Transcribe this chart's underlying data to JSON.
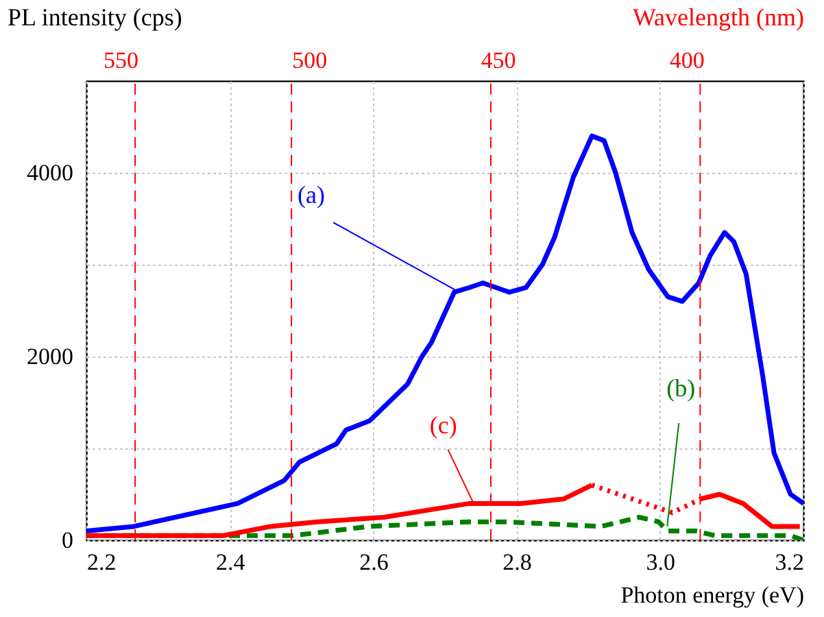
{
  "chart_data": {
    "type": "line",
    "ylabel": "PL intensity (cps)",
    "xlabel": "Photon energy (eV)",
    "x2label": "Wavelength (nm)",
    "xlim": [
      2.2,
      3.2
    ],
    "xticks": [
      {
        "value": 2.2,
        "label": "2.2"
      },
      {
        "value": 2.4,
        "label": "2.4"
      },
      {
        "value": 2.6,
        "label": "2.6"
      },
      {
        "value": 2.8,
        "label": "2.8"
      },
      {
        "value": 3.0,
        "label": "3.0"
      },
      {
        "value": 3.2,
        "label": "3.2"
      }
    ],
    "x2lim": [
      559,
      369
    ],
    "x2ticks": [
      550,
      500,
      450,
      400
    ],
    "ylim": [
      0,
      5000
    ],
    "yticks": [
      0,
      {
        "value": 1000,
        "label": null
      },
      2000,
      {
        "value": 3000,
        "label": null
      },
      4000
    ],
    "grid": true,
    "marker": "none",
    "series": [
      {
        "color": "#0000ff",
        "line_style": "solid",
        "x": [
          2.2,
          2.266,
          2.411,
          2.476,
          2.497,
          2.549,
          2.562,
          2.595,
          2.648,
          2.668,
          2.681,
          2.713,
          2.734,
          2.753,
          2.79,
          2.813,
          2.836,
          2.853,
          2.879,
          2.905,
          2.922,
          2.938,
          2.961,
          2.984,
          3.011,
          3.031,
          3.054,
          3.07,
          3.09,
          3.103,
          3.12,
          3.143,
          3.159,
          3.182,
          3.2
        ],
        "values": [
          100,
          150,
          400,
          650,
          850,
          1050,
          1200,
          1300,
          1700,
          2000,
          2150,
          2700,
          2750,
          2800,
          2700,
          2750,
          3000,
          3300,
          3950,
          4400,
          4350,
          4000,
          3350,
          2950,
          2650,
          2600,
          2800,
          3100,
          3350,
          3250,
          2900,
          1800,
          950,
          500,
          400
        ]
      },
      {
        "color": "#008000",
        "line_style": "dashed",
        "x": [
          2.2,
          2.488,
          2.595,
          2.734,
          2.786,
          2.918,
          2.971,
          2.998,
          3.011,
          3.05,
          3.077,
          3.09,
          3.182,
          3.2
        ],
        "values": [
          50,
          50,
          150,
          200,
          200,
          150,
          250,
          200,
          100,
          100,
          50,
          50,
          50,
          0
        ]
      },
      {
        "color": "#ff0000",
        "line_style": "solid",
        "x": [
          2.2,
          2.391,
          2.457,
          2.522,
          2.615,
          2.694,
          2.734,
          2.806,
          2.866,
          2.905
        ],
        "values": [
          50,
          50,
          150,
          200,
          250,
          350,
          400,
          400,
          450,
          600
        ]
      },
      {
        "color": "#ff0000",
        "line_style": "dotted",
        "x": [
          2.905,
          3.017,
          3.057
        ],
        "values": [
          600,
          300,
          450
        ]
      },
      {
        "color": "#ff0000",
        "line_style": "solid",
        "x": [
          3.057,
          3.083,
          3.116,
          3.156,
          3.195
        ],
        "values": [
          450,
          500,
          400,
          150,
          150
        ]
      }
    ],
    "annotations": [
      {
        "text": "(a)",
        "x": 2.72,
        "y": 2700
      },
      {
        "text": "(b)",
        "x": 3.01,
        "y": 150
      },
      {
        "text": "(c)",
        "x": 2.74,
        "y": 400
      }
    ],
    "ref_lines": [
      {
        "axis": "x",
        "value": 2.268,
        "color": "#ff0000",
        "line_style": "dashed"
      },
      {
        "axis": "x",
        "value": 2.486,
        "color": "#ff0000",
        "line_style": "dashed"
      },
      {
        "axis": "x",
        "value": 2.764,
        "color": "#ff0000",
        "line_style": "dashed"
      },
      {
        "axis": "x",
        "value": 3.056,
        "color": "#ff0000",
        "line_style": "dashed"
      }
    ]
  }
}
